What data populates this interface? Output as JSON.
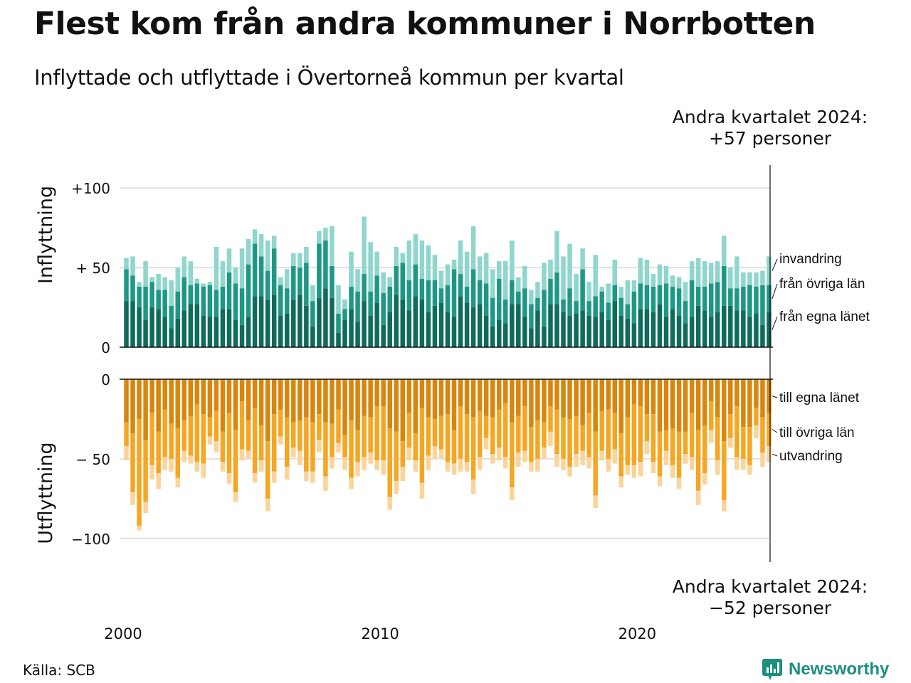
{
  "title": "Flest kom från andra kommuner i Norrbotten",
  "subtitle": "Inflyttade och utflyttade i Övertorneå kommun per kvartal",
  "callout_top": {
    "line1": "Andra kvartalet 2024:",
    "line2": "+57 personer"
  },
  "callout_bottom": {
    "line1": "Andra kvartalet 2024:",
    "line2": "−52 personer"
  },
  "source": "Källa: SCB",
  "brand": {
    "name": "Newsworthy",
    "icon": "newsworthy-chart-icon"
  },
  "colors": {
    "in_own": "#0f6b5a",
    "in_other": "#1e9885",
    "in_immig": "#8fd6cc",
    "out_own": "#d8860e",
    "out_other": "#f5a623",
    "out_emig": "#fbd49a",
    "grid": "#e0e0e0"
  },
  "chart_data": [
    {
      "type": "bar",
      "stacked": true,
      "panel": "top",
      "ylabel": "Inflyttning",
      "ylim": [
        0,
        105
      ],
      "yticks": [
        {
          "value": 0,
          "label": "0"
        },
        {
          "value": 50,
          "label": "+ 50"
        },
        {
          "value": 100,
          "label": "+100"
        }
      ],
      "xticks": [
        {
          "year": 2000,
          "label": "2000"
        },
        {
          "year": 2010,
          "label": "2010"
        },
        {
          "year": 2020,
          "label": "2020"
        }
      ],
      "x_start": "2000 Q1",
      "x_end": "2024 Q2",
      "grid": true,
      "series": [
        {
          "name": "från egna länet",
          "values": [
            29,
            29,
            25,
            17,
            25,
            24,
            19,
            12,
            18,
            23,
            27,
            27,
            20,
            19,
            19,
            24,
            24,
            17,
            14,
            19,
            32,
            32,
            30,
            33,
            20,
            21,
            30,
            33,
            26,
            13,
            31,
            37,
            31,
            9,
            17,
            24,
            16,
            29,
            20,
            28,
            14,
            22,
            33,
            30,
            23,
            32,
            30,
            22,
            26,
            28,
            22,
            19,
            32,
            28,
            25,
            27,
            20,
            13,
            17,
            15,
            27,
            27,
            19,
            12,
            23,
            13,
            27,
            27,
            22,
            20,
            21,
            23,
            20,
            19,
            22,
            17,
            29,
            20,
            18,
            15,
            24,
            24,
            22,
            27,
            19,
            24,
            20,
            15,
            19,
            26,
            23,
            19,
            22,
            26,
            26,
            23,
            23,
            19,
            21,
            14,
            22
          ]
        },
        {
          "name": "från övriga län",
          "values": [
            20,
            16,
            13,
            21,
            16,
            12,
            17,
            14,
            17,
            21,
            12,
            13,
            18,
            20,
            17,
            14,
            23,
            23,
            23,
            33,
            33,
            25,
            18,
            29,
            19,
            16,
            21,
            17,
            27,
            16,
            34,
            30,
            20,
            12,
            7,
            14,
            19,
            17,
            15,
            17,
            20,
            16,
            18,
            23,
            19,
            20,
            13,
            20,
            16,
            9,
            17,
            30,
            14,
            10,
            24,
            15,
            20,
            18,
            26,
            15,
            15,
            8,
            18,
            15,
            8,
            23,
            16,
            20,
            8,
            17,
            8,
            26,
            9,
            13,
            13,
            11,
            10,
            11,
            9,
            20,
            16,
            15,
            16,
            12,
            21,
            14,
            17,
            14,
            23,
            12,
            15,
            21,
            19,
            25,
            11,
            14,
            15,
            20,
            17,
            25,
            17
          ]
        },
        {
          "name": "invandring",
          "values": [
            7,
            12,
            3,
            16,
            3,
            10,
            8,
            16,
            15,
            13,
            15,
            3,
            2,
            2,
            27,
            16,
            15,
            10,
            25,
            16,
            9,
            14,
            19,
            8,
            5,
            12,
            8,
            9,
            10,
            10,
            8,
            8,
            25,
            18,
            6,
            22,
            14,
            36,
            31,
            15,
            13,
            6,
            12,
            6,
            25,
            19,
            24,
            22,
            16,
            11,
            13,
            6,
            21,
            22,
            27,
            15,
            19,
            18,
            11,
            24,
            25,
            9,
            14,
            9,
            10,
            17,
            12,
            26,
            27,
            28,
            17,
            13,
            12,
            26,
            3,
            12,
            16,
            7,
            15,
            7,
            16,
            16,
            8,
            13,
            11,
            7,
            7,
            12,
            12,
            18,
            16,
            13,
            13,
            19,
            13,
            20,
            9,
            8,
            9,
            9,
            18
          ]
        }
      ]
    },
    {
      "type": "bar",
      "stacked": true,
      "panel": "bottom",
      "ylabel": "Utflyttning",
      "ylim": [
        -110,
        0
      ],
      "yticks": [
        {
          "value": 0,
          "label": "0"
        },
        {
          "value": -50,
          "label": "− 50"
        },
        {
          "value": -100,
          "label": "−100"
        }
      ],
      "grid": true,
      "series": [
        {
          "name": "till egna länet",
          "values": [
            -27,
            -34,
            -25,
            -38,
            -21,
            -33,
            -19,
            -28,
            -31,
            -26,
            -23,
            -16,
            -22,
            -24,
            -20,
            -33,
            -21,
            -32,
            -14,
            -26,
            -18,
            -29,
            -39,
            -22,
            -19,
            -24,
            -27,
            -26,
            -24,
            -27,
            -22,
            -27,
            -28,
            -19,
            -35,
            -26,
            -32,
            -23,
            -24,
            -17,
            -17,
            -31,
            -33,
            -39,
            -21,
            -34,
            -18,
            -24,
            -25,
            -23,
            -22,
            -32,
            -17,
            -22,
            -24,
            -20,
            -23,
            -24,
            -19,
            -15,
            -27,
            -23,
            -17,
            -30,
            -26,
            -27,
            -17,
            -19,
            -24,
            -25,
            -23,
            -29,
            -21,
            -33,
            -20,
            -19,
            -21,
            -34,
            -24,
            -16,
            -17,
            -22,
            -22,
            -33,
            -32,
            -31,
            -33,
            -33,
            -21,
            -32,
            -29,
            -14,
            -24,
            -39,
            -22,
            -17,
            -30,
            -30,
            -18,
            -24,
            -21
          ]
        },
        {
          "name": "till övriga län",
          "values": [
            -15,
            -37,
            -67,
            -39,
            -33,
            -26,
            -30,
            -22,
            -31,
            -19,
            -25,
            -36,
            -31,
            -12,
            -19,
            -19,
            -38,
            -39,
            -30,
            -19,
            -41,
            -22,
            -36,
            -36,
            -17,
            -31,
            -16,
            -19,
            -34,
            -31,
            -16,
            -34,
            -21,
            -21,
            -14,
            -36,
            -20,
            -26,
            -22,
            -34,
            -34,
            -43,
            -31,
            -16,
            -22,
            -17,
            -47,
            -24,
            -17,
            -21,
            -30,
            -21,
            -33,
            -30,
            -39,
            -29,
            -14,
            -23,
            -24,
            -34,
            -41,
            -23,
            -28,
            -22,
            -24,
            -16,
            -16,
            -28,
            -26,
            -30,
            -24,
            -16,
            -28,
            -40,
            -25,
            -31,
            -23,
            -27,
            -30,
            -38,
            -35,
            -17,
            -30,
            -28,
            -13,
            -23,
            -29,
            -14,
            -28,
            -38,
            -30,
            -18,
            -27,
            -37,
            -15,
            -32,
            -20,
            -24,
            -11,
            -22,
            -21
          ]
        },
        {
          "name": "utvandring",
          "values": [
            -9,
            -8,
            -3,
            -7,
            -9,
            -10,
            -8,
            -8,
            -6,
            -7,
            -5,
            -6,
            -9,
            -5,
            -7,
            -6,
            -7,
            -6,
            -7,
            -5,
            -6,
            -7,
            -8,
            -7,
            -5,
            -8,
            -6,
            -9,
            -6,
            -7,
            -8,
            -9,
            -7,
            -6,
            -8,
            -7,
            -9,
            -8,
            -7,
            -6,
            -9,
            -8,
            -8,
            -9,
            -8,
            -7,
            -10,
            -9,
            -8,
            -6,
            -6,
            -7,
            -8,
            -6,
            -9,
            -8,
            -7,
            -6,
            -8,
            -7,
            -8,
            -9,
            -7,
            -6,
            -8,
            -7,
            -9,
            -8,
            -7,
            -6,
            -8,
            -9,
            -7,
            -8,
            -6,
            -8,
            -9,
            -7,
            -6,
            -8,
            -9,
            -8,
            -7,
            -6,
            -9,
            -8,
            -7,
            -6,
            -8,
            -9,
            -7,
            -8,
            -9,
            -7,
            -6,
            -8,
            -7,
            -6,
            -8,
            -9,
            -10
          ]
        }
      ]
    }
  ],
  "legend_top": [
    "invandring",
    "från övriga län",
    "från egna länet"
  ],
  "legend_bottom": [
    "till egna länet",
    "till övriga län",
    "utvandring"
  ]
}
